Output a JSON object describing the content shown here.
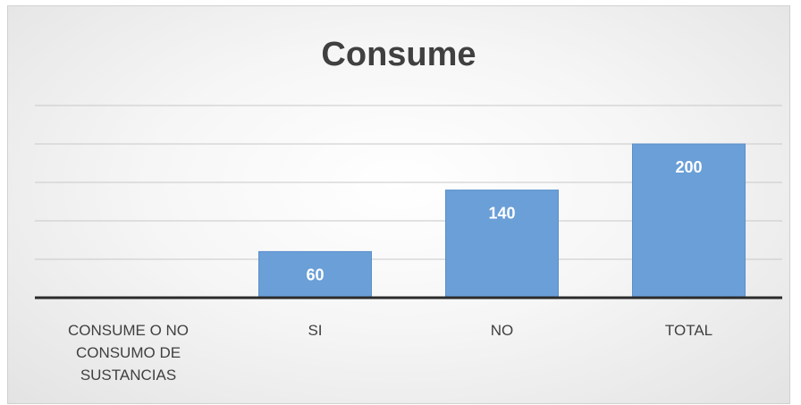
{
  "chart_data": {
    "type": "bar",
    "title": "Consume",
    "categories": [
      "CONSUME O NO CONSUMO DE SUSTANCIAS",
      "SI",
      "NO",
      "TOTAL"
    ],
    "category_lines": [
      [
        "CONSUME O NO",
        "CONSUMO DE",
        "SUSTANCIAS"
      ],
      [
        "SI"
      ],
      [
        "NO"
      ],
      [
        "TOTAL"
      ]
    ],
    "values": [
      null,
      60,
      140,
      200
    ],
    "value_labels": [
      "",
      "60",
      "140",
      "200"
    ],
    "ylim": [
      0,
      250
    ],
    "gridline_step": 50,
    "grid": true,
    "legend": "none",
    "xlabel": "",
    "ylabel": "",
    "colors": {
      "bar": "#6a9fd8",
      "bar_edge": "#5b8fc9",
      "grid": "#c8c8c8",
      "axis": "#2b2b2b",
      "title": "#404040"
    }
  }
}
